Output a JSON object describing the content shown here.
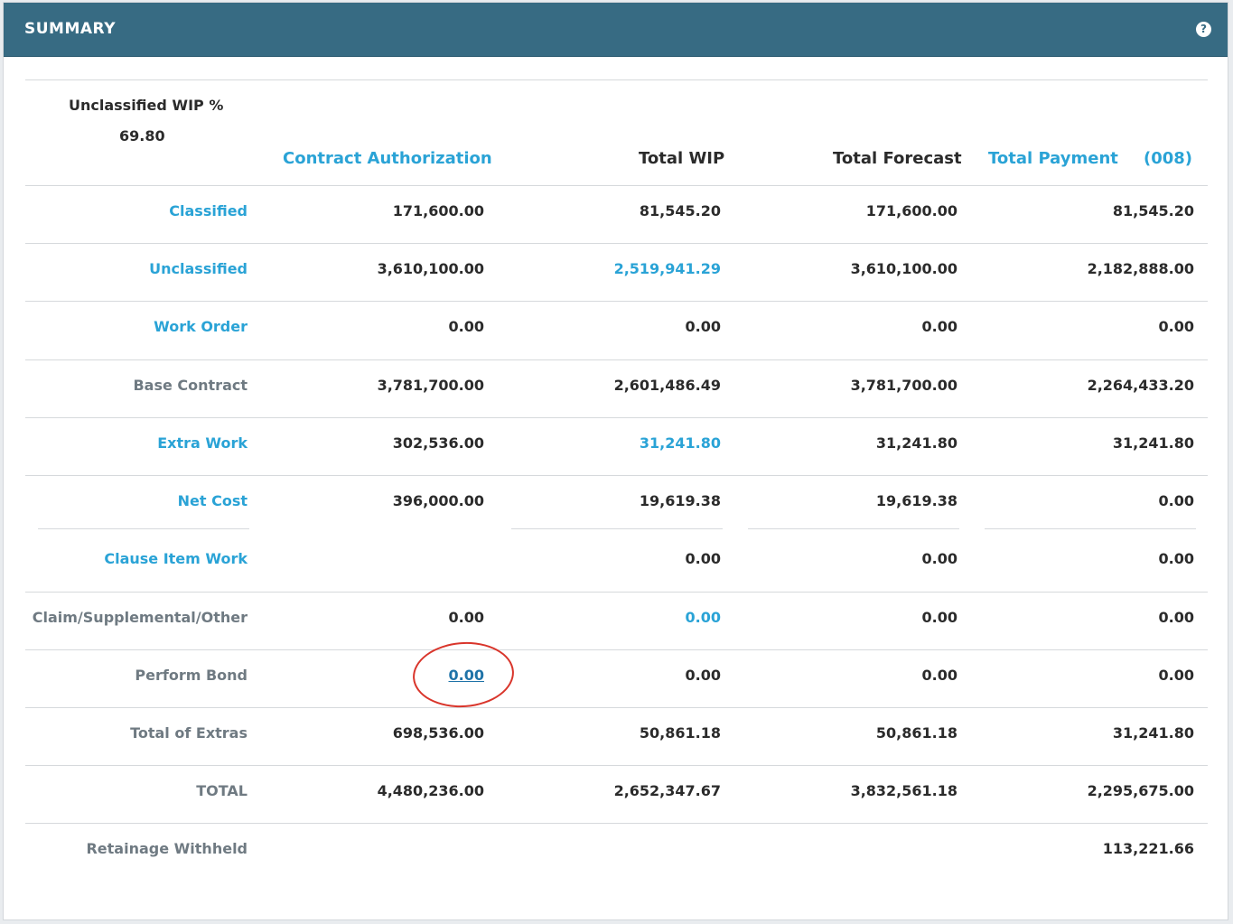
{
  "header": {
    "title": "SUMMARY",
    "help_icon": "question-circle-icon"
  },
  "unclassified_wip": {
    "label": "Unclassified WIP %",
    "value": "69.80"
  },
  "columns": {
    "contract_authorization": "Contract Authorization",
    "total_wip": "Total WIP",
    "total_forecast": "Total Forecast",
    "total_payment": "Total Payment",
    "payment_count": "(008)"
  },
  "rows": {
    "classified": {
      "label": "Classified",
      "c1": "171,600.00",
      "c2": "81,545.20",
      "c3": "171,600.00",
      "c4": "81,545.20"
    },
    "unclassified": {
      "label": "Unclassified",
      "c1": "3,610,100.00",
      "c2": "2,519,941.29",
      "c3": "3,610,100.00",
      "c4": "2,182,888.00"
    },
    "work_order": {
      "label": "Work Order",
      "c1": "0.00",
      "c2": "0.00",
      "c3": "0.00",
      "c4": "0.00"
    },
    "base_contract": {
      "label": "Base Contract",
      "c1": "3,781,700.00",
      "c2": "2,601,486.49",
      "c3": "3,781,700.00",
      "c4": "2,264,433.20"
    },
    "extra_work": {
      "label": "Extra Work",
      "c1": "302,536.00",
      "c2": "31,241.80",
      "c3": "31,241.80",
      "c4": "31,241.80"
    },
    "net_cost": {
      "label": "Net Cost",
      "c1": "396,000.00",
      "c2": "19,619.38",
      "c3": "19,619.38",
      "c4": "0.00"
    },
    "clause_item_work": {
      "label": "Clause Item Work",
      "c2": "0.00",
      "c3": "0.00",
      "c4": "0.00"
    },
    "claim": {
      "label": "Claim/Supplemental/Other",
      "c1": "0.00",
      "c2": "0.00",
      "c3": "0.00",
      "c4": "0.00"
    },
    "perform_bond": {
      "label": "Perform Bond",
      "c1": "0.00",
      "c2": "0.00",
      "c3": "0.00",
      "c4": "0.00"
    },
    "total_extras": {
      "label": "Total of Extras",
      "c1": "698,536.00",
      "c2": "50,861.18",
      "c3": "50,861.18",
      "c4": "31,241.80"
    },
    "total": {
      "label": "TOTAL",
      "c1": "4,480,236.00",
      "c2": "2,652,347.67",
      "c3": "3,832,561.18",
      "c4": "2,295,675.00"
    },
    "retainage": {
      "label": "Retainage Withheld",
      "c4": "113,221.66"
    }
  },
  "colors": {
    "header_bg": "#376b83",
    "link": "#2aa3d6",
    "annotation_ring": "#d9352b"
  }
}
